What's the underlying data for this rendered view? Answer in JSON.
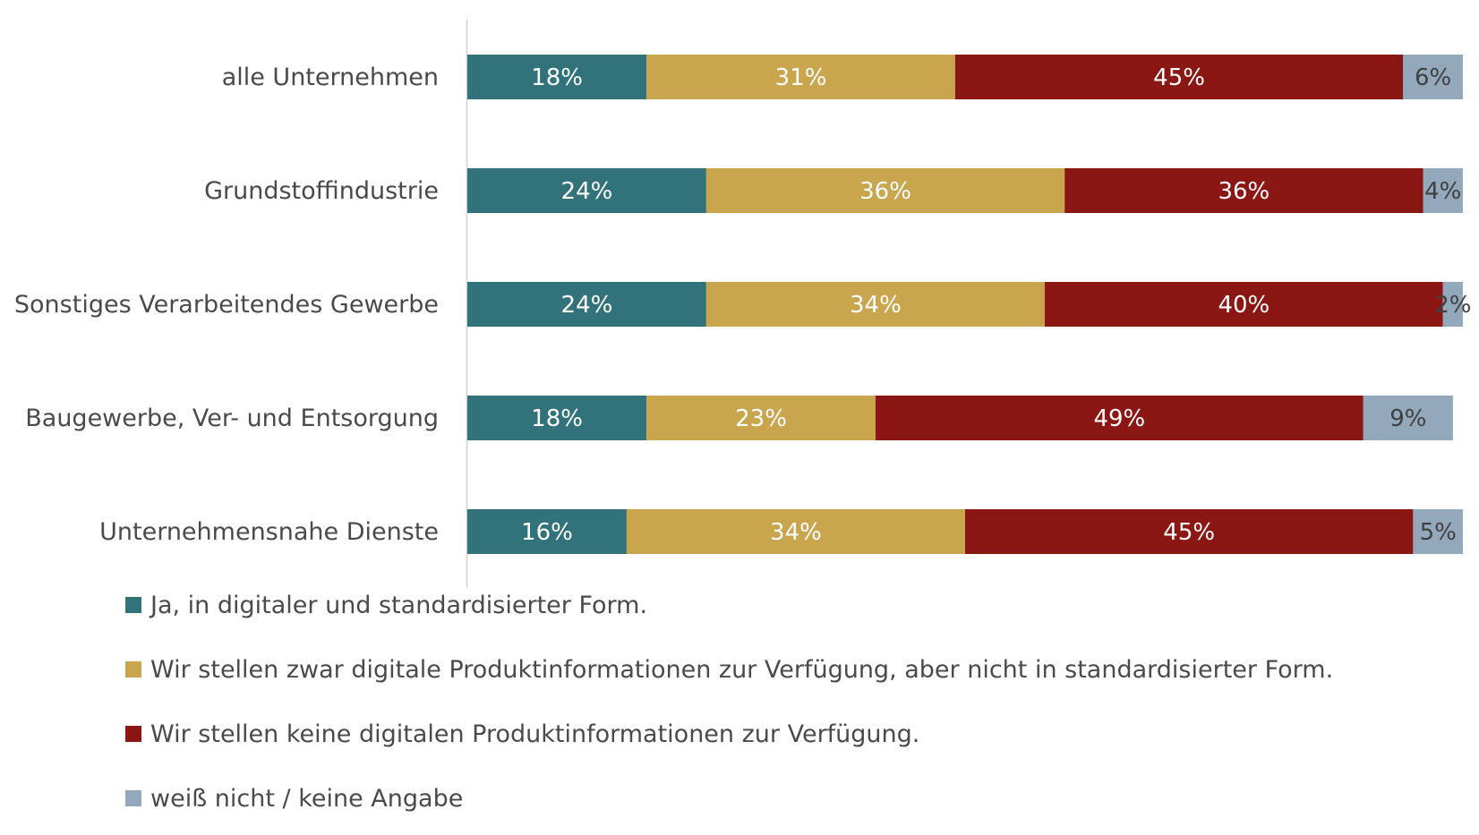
{
  "chart_data": {
    "type": "bar",
    "orientation": "horizontal",
    "stacked": true,
    "categories": [
      "alle Unternehmen",
      "Grundstoffindustrie",
      "Sonstiges Verarbeitendes Gewerbe",
      "Baugewerbe, Ver- und Entsorgung",
      "Unternehmensnahe Dienste"
    ],
    "series": [
      {
        "name": "Ja, in digitaler und standardisierter Form.",
        "color": "#31727b",
        "values": [
          18,
          24,
          24,
          18,
          16
        ],
        "labels": [
          "18%",
          "24%",
          "24%",
          "18%",
          "16%"
        ],
        "label_color": "#ffffff"
      },
      {
        "name": "Wir stellen zwar digitale Produktinformationen zur Verfügung, aber nicht in standardisierter Form.",
        "color": "#c9a54e",
        "values": [
          31,
          36,
          34,
          23,
          34
        ],
        "labels": [
          "31%",
          "36%",
          "34%",
          "23%",
          "34%"
        ],
        "label_color": "#ffffff"
      },
      {
        "name": "Wir stellen keine digitalen Produktinformationen zur Verfügung.",
        "color": "#8a1714",
        "values": [
          45,
          36,
          40,
          49,
          45
        ],
        "labels": [
          "45%",
          "36%",
          "40%",
          "49%",
          "45%"
        ],
        "label_color": "#ffffff"
      },
      {
        "name": "weiß nicht / keine Angabe",
        "color": "#93a8ba",
        "values": [
          6,
          4,
          2,
          9,
          5
        ],
        "labels": [
          "6%",
          "4%",
          "2%",
          "9%",
          "5%"
        ],
        "label_color": "#404040"
      }
    ],
    "xlim": [
      0,
      100
    ],
    "grid": false,
    "legend_position": "bottom-left"
  }
}
